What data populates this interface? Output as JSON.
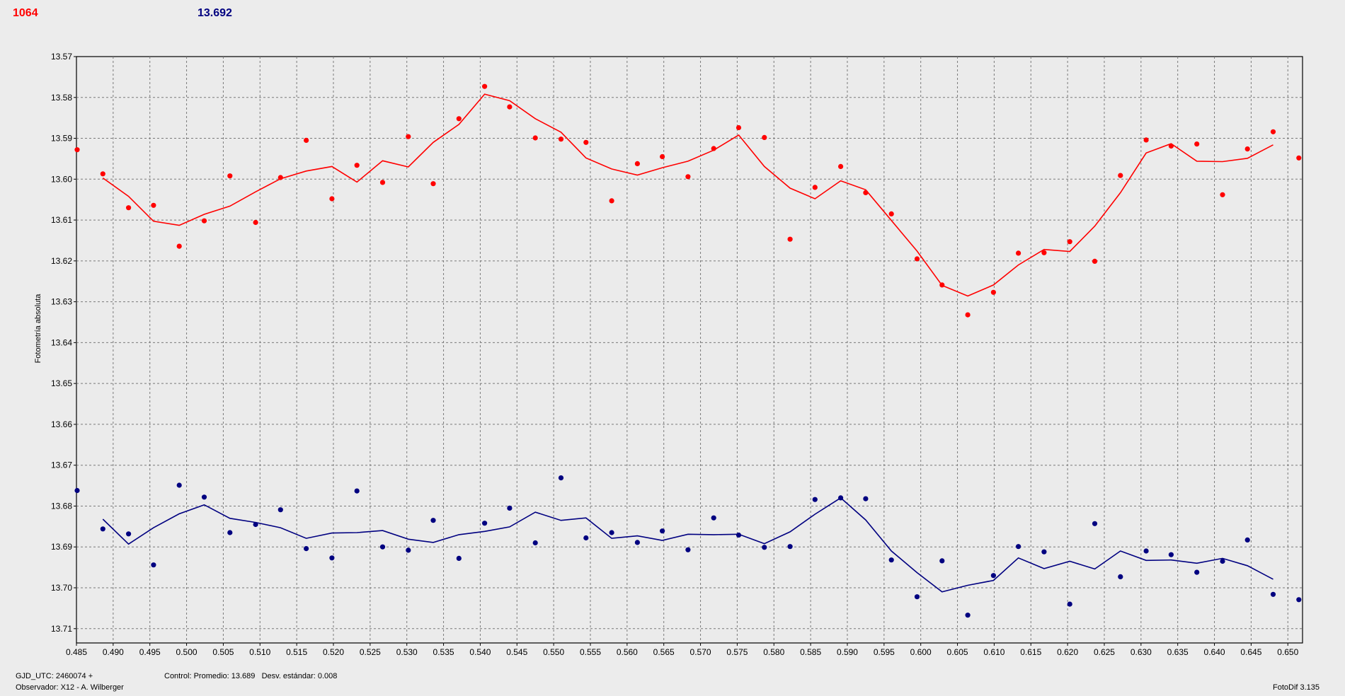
{
  "header": {
    "red_value": "1064",
    "blue_value": "13.692"
  },
  "footer": {
    "gjd": "GJD_UTC: 2460074 +",
    "observer": "Observador: X12 - A. Wilberger",
    "control": "Control: Promedio: 13.689   Desv. estándar: 0.008",
    "version": "FotoDif 3.135"
  },
  "chart_data": {
    "type": "scatter",
    "title": "",
    "xlabel": "",
    "ylabel": "Fotometría absoluta",
    "xlim": [
      0.485,
      0.652
    ],
    "ylim": [
      13.57,
      13.7135
    ],
    "y_inverted": true,
    "grid": true,
    "x_ticks": [
      "0.485",
      "0.490",
      "0.495",
      "0.500",
      "0.505",
      "0.510",
      "0.515",
      "0.520",
      "0.525",
      "0.530",
      "0.535",
      "0.540",
      "0.545",
      "0.550",
      "0.555",
      "0.560",
      "0.565",
      "0.570",
      "0.575",
      "0.580",
      "0.585",
      "0.590",
      "0.595",
      "0.600",
      "0.605",
      "0.610",
      "0.615",
      "0.620",
      "0.625",
      "0.630",
      "0.635",
      "0.640",
      "0.645",
      "0.650"
    ],
    "y_ticks": [
      "13.57",
      "13.58",
      "13.59",
      "13.60",
      "13.61",
      "13.62",
      "13.63",
      "13.64",
      "13.65",
      "13.66",
      "13.67",
      "13.68",
      "13.69",
      "13.70",
      "13.71"
    ],
    "series": [
      {
        "color": "#ff0000",
        "x": [
          0.4851,
          0.4886,
          0.4921,
          0.4955,
          0.499,
          0.5024,
          0.5059,
          0.5094,
          0.5128,
          0.5163,
          0.5198,
          0.5232,
          0.5267,
          0.5302,
          0.5336,
          0.5371,
          0.5406,
          0.544,
          0.5475,
          0.551,
          0.5544,
          0.5579,
          0.5614,
          0.5648,
          0.5683,
          0.5718,
          0.5752,
          0.5787,
          0.5822,
          0.5856,
          0.5891,
          0.5925,
          0.596,
          0.5995,
          0.6029,
          0.6064,
          0.6099,
          0.6133,
          0.6168,
          0.6203,
          0.6237,
          0.6272,
          0.6307,
          0.6341,
          0.6376,
          0.6411,
          0.6445,
          0.648,
          0.6515
        ],
        "points": [
          13.5928,
          13.5987,
          13.607,
          13.6064,
          13.6164,
          13.6102,
          13.5992,
          13.6106,
          13.5996,
          13.5905,
          13.6048,
          13.5966,
          13.6008,
          13.5896,
          13.6011,
          13.5852,
          13.5773,
          13.5823,
          13.5899,
          13.5902,
          13.591,
          13.6053,
          13.5962,
          13.5945,
          13.5994,
          13.5925,
          13.5874,
          13.5898,
          13.6147,
          13.602,
          13.5969,
          13.6033,
          13.6085,
          13.6195,
          13.6259,
          13.6332,
          13.6277,
          13.6181,
          13.618,
          13.6153,
          13.6201,
          13.5991,
          13.5904,
          13.5919,
          13.5914,
          13.6038,
          13.5926,
          13.5884,
          13.5948
        ],
        "trend": [
          null,
          13.5997,
          13.6042,
          13.6103,
          13.6113,
          13.6086,
          13.6066,
          13.6031,
          13.5999,
          13.598,
          13.5969,
          13.6007,
          13.5955,
          13.597,
          13.591,
          13.5866,
          13.5792,
          13.5808,
          13.5852,
          13.5885,
          13.5948,
          13.5975,
          13.599,
          13.5972,
          13.5956,
          13.5929,
          13.5892,
          13.5969,
          13.6022,
          13.6048,
          13.6004,
          13.6026,
          13.6101,
          13.6176,
          13.626,
          13.6286,
          13.6259,
          13.621,
          13.6172,
          13.6177,
          13.6115,
          13.6033,
          13.5936,
          13.5913,
          13.5956,
          13.5957,
          13.5949,
          13.5916,
          null
        ]
      },
      {
        "color": "#000080",
        "x": [
          0.4851,
          0.4886,
          0.4921,
          0.4955,
          0.499,
          0.5024,
          0.5059,
          0.5094,
          0.5128,
          0.5163,
          0.5198,
          0.5232,
          0.5267,
          0.5302,
          0.5336,
          0.5371,
          0.5406,
          0.544,
          0.5475,
          0.551,
          0.5544,
          0.5579,
          0.5614,
          0.5648,
          0.5683,
          0.5718,
          0.5752,
          0.5787,
          0.5822,
          0.5856,
          0.5891,
          0.5925,
          0.596,
          0.5995,
          0.6029,
          0.6064,
          0.6099,
          0.6133,
          0.6168,
          0.6203,
          0.6237,
          0.6272,
          0.6307,
          0.6341,
          0.6376,
          0.6411,
          0.6445,
          0.648,
          0.6515
        ],
        "points": [
          13.6762,
          13.6856,
          13.6868,
          13.6944,
          13.6749,
          13.6778,
          13.6865,
          13.6845,
          13.6809,
          13.6904,
          13.6927,
          13.6763,
          13.69,
          13.6908,
          13.6835,
          13.6928,
          13.6842,
          13.6805,
          13.689,
          13.6731,
          13.6878,
          13.6865,
          13.6889,
          13.6861,
          13.6907,
          13.6829,
          13.6871,
          13.6901,
          13.6899,
          13.6784,
          13.678,
          13.6782,
          13.6932,
          13.7022,
          13.6934,
          13.7067,
          13.697,
          13.6899,
          13.6912,
          13.704,
          13.6843,
          13.6973,
          13.691,
          13.6919,
          13.6962,
          13.6935,
          13.6883,
          13.7016,
          13.7029
        ],
        "trend": [
          null,
          13.6832,
          13.6893,
          13.6853,
          13.6819,
          13.6797,
          13.683,
          13.684,
          13.6853,
          13.6879,
          13.6866,
          13.6865,
          13.686,
          13.6881,
          13.6889,
          13.687,
          13.6862,
          13.6851,
          13.6815,
          13.6835,
          13.6829,
          13.6879,
          13.6873,
          13.6884,
          13.6869,
          13.687,
          13.6869,
          13.6892,
          13.6863,
          13.682,
          13.678,
          13.6834,
          13.691,
          13.6963,
          13.701,
          13.6994,
          13.6982,
          13.6927,
          13.6953,
          13.6935,
          13.6954,
          13.691,
          13.6933,
          13.6932,
          13.694,
          13.6928,
          13.6946,
          13.6979,
          null
        ]
      }
    ]
  }
}
